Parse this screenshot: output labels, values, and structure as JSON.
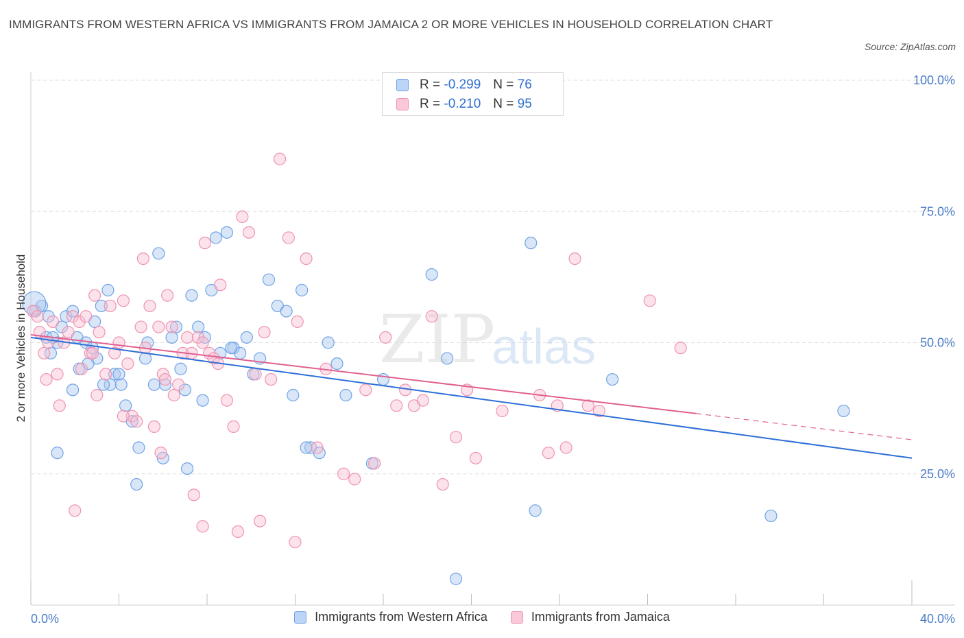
{
  "header": {
    "title": "IMMIGRANTS FROM WESTERN AFRICA VS IMMIGRANTS FROM JAMAICA 2 OR MORE VEHICLES IN HOUSEHOLD CORRELATION CHART",
    "source": "Source: ZipAtlas.com"
  },
  "legend": {
    "r_label": "R =",
    "n_label": "N =",
    "rows": [
      {
        "r": "-0.299",
        "n": "76",
        "color": "#6fa3e6"
      },
      {
        "r": "-0.210",
        "n": "95",
        "color": "#ef93b1"
      }
    ]
  },
  "watermark": {
    "zip": "ZIP",
    "atlas": "atlas"
  },
  "chart_data": {
    "type": "scatter",
    "ylabel": "2 or more Vehicles in Household",
    "xlabel": "",
    "xlim": [
      0,
      40
    ],
    "ylim": [
      0,
      100
    ],
    "x_tick_labels": [
      "0.0%",
      "40.0%"
    ],
    "y_tick_labels": [
      "25.0%",
      "50.0%",
      "75.0%",
      "100.0%"
    ],
    "y_ticks": [
      25,
      50,
      75,
      100
    ],
    "grid": true,
    "legend_position": "top-center",
    "series": [
      {
        "name": "Immigrants from Western Africa",
        "color": "#6fa3e6",
        "trend": {
          "x0": 0,
          "y0": 51.0,
          "x1": 40,
          "y1": 28.0
        },
        "points": [
          [
            0.2,
            56
          ],
          [
            0.5,
            57
          ],
          [
            0.8,
            55
          ],
          [
            0.7,
            51
          ],
          [
            0.9,
            48
          ],
          [
            1.2,
            50
          ],
          [
            1.6,
            55
          ],
          [
            1.4,
            53
          ],
          [
            1.9,
            56
          ],
          [
            2.1,
            51
          ],
          [
            2.5,
            50
          ],
          [
            2.8,
            49
          ],
          [
            3.2,
            57
          ],
          [
            3.5,
            60
          ],
          [
            3.0,
            47
          ],
          [
            2.6,
            46
          ],
          [
            2.2,
            45
          ],
          [
            1.9,
            41
          ],
          [
            1.2,
            29
          ],
          [
            3.8,
            44
          ],
          [
            4.1,
            42
          ],
          [
            4.3,
            38
          ],
          [
            4.6,
            35
          ],
          [
            4.9,
            30
          ],
          [
            5.2,
            47
          ],
          [
            5.3,
            50
          ],
          [
            5.8,
            67
          ],
          [
            6.1,
            42
          ],
          [
            6.4,
            51
          ],
          [
            6.6,
            53
          ],
          [
            6.8,
            45
          ],
          [
            7.0,
            41
          ],
          [
            7.3,
            59
          ],
          [
            7.6,
            53
          ],
          [
            7.9,
            51
          ],
          [
            8.2,
            60
          ],
          [
            8.4,
            70
          ],
          [
            8.6,
            48
          ],
          [
            8.9,
            71
          ],
          [
            9.2,
            49
          ],
          [
            9.5,
            48
          ],
          [
            9.8,
            51
          ],
          [
            10.1,
            44
          ],
          [
            10.4,
            47
          ],
          [
            10.8,
            62
          ],
          [
            11.2,
            57
          ],
          [
            11.6,
            56
          ],
          [
            11.9,
            40
          ],
          [
            12.3,
            60
          ],
          [
            12.7,
            30
          ],
          [
            13.1,
            29
          ],
          [
            13.5,
            50
          ],
          [
            13.9,
            46
          ],
          [
            14.3,
            40
          ],
          [
            6.0,
            28
          ],
          [
            7.1,
            26
          ],
          [
            4.8,
            23
          ],
          [
            15.5,
            27
          ],
          [
            16.0,
            43
          ],
          [
            18.2,
            63
          ],
          [
            18.9,
            47
          ],
          [
            19.3,
            5
          ],
          [
            22.7,
            69
          ],
          [
            22.9,
            18
          ],
          [
            26.4,
            43
          ],
          [
            36.9,
            37
          ],
          [
            33.6,
            17
          ],
          [
            3.6,
            42
          ],
          [
            2.9,
            54
          ],
          [
            7.8,
            39
          ],
          [
            9.1,
            49
          ],
          [
            5.6,
            42
          ],
          [
            4.0,
            44
          ],
          [
            3.3,
            42
          ],
          [
            1.0,
            51
          ],
          [
            12.5,
            30
          ]
        ]
      },
      {
        "name": "Immigrants from Jamaica",
        "color": "#ef93b1",
        "trend": {
          "x0": 0,
          "y0": 51.5,
          "x1": 30.2,
          "y1": 36.5,
          "dashed_to_x": 40,
          "dashed_to_y": 31.5
        },
        "points": [
          [
            0.1,
            56
          ],
          [
            0.3,
            55
          ],
          [
            0.4,
            52
          ],
          [
            0.6,
            48
          ],
          [
            0.8,
            50
          ],
          [
            1.0,
            54
          ],
          [
            1.2,
            44
          ],
          [
            1.5,
            50
          ],
          [
            1.7,
            52
          ],
          [
            1.9,
            55
          ],
          [
            2.2,
            54
          ],
          [
            2.3,
            45
          ],
          [
            2.5,
            55
          ],
          [
            2.7,
            48
          ],
          [
            2.9,
            59
          ],
          [
            3.1,
            52
          ],
          [
            3.4,
            44
          ],
          [
            3.6,
            57
          ],
          [
            3.8,
            48
          ],
          [
            4.0,
            50
          ],
          [
            4.2,
            58
          ],
          [
            4.4,
            46
          ],
          [
            4.6,
            36
          ],
          [
            4.8,
            35
          ],
          [
            5.0,
            53
          ],
          [
            5.2,
            49
          ],
          [
            5.4,
            57
          ],
          [
            5.6,
            34
          ],
          [
            5.8,
            53
          ],
          [
            6.0,
            44
          ],
          [
            6.2,
            59
          ],
          [
            6.4,
            53
          ],
          [
            6.7,
            42
          ],
          [
            6.9,
            48
          ],
          [
            7.1,
            51
          ],
          [
            7.3,
            48
          ],
          [
            7.6,
            51
          ],
          [
            7.8,
            50
          ],
          [
            7.9,
            69
          ],
          [
            8.1,
            48
          ],
          [
            8.3,
            47
          ],
          [
            8.5,
            46
          ],
          [
            8.6,
            61
          ],
          [
            8.9,
            39
          ],
          [
            9.2,
            34
          ],
          [
            9.6,
            74
          ],
          [
            9.9,
            71
          ],
          [
            10.2,
            44
          ],
          [
            10.6,
            52
          ],
          [
            10.9,
            43
          ],
          [
            11.3,
            85
          ],
          [
            11.7,
            70
          ],
          [
            12.1,
            54
          ],
          [
            12.5,
            66
          ],
          [
            13.0,
            30
          ],
          [
            13.4,
            45
          ],
          [
            14.2,
            25
          ],
          [
            14.7,
            24
          ],
          [
            15.2,
            41
          ],
          [
            15.6,
            27
          ],
          [
            16.1,
            51
          ],
          [
            16.6,
            38
          ],
          [
            17.0,
            41
          ],
          [
            17.4,
            38
          ],
          [
            17.8,
            39
          ],
          [
            18.2,
            55
          ],
          [
            18.7,
            23
          ],
          [
            19.3,
            32
          ],
          [
            19.8,
            41
          ],
          [
            20.2,
            28
          ],
          [
            21.4,
            37
          ],
          [
            23.1,
            40
          ],
          [
            23.5,
            29
          ],
          [
            23.9,
            38
          ],
          [
            24.3,
            30
          ],
          [
            24.7,
            66
          ],
          [
            25.3,
            38
          ],
          [
            25.8,
            37
          ],
          [
            28.1,
            58
          ],
          [
            29.5,
            49
          ],
          [
            2.0,
            18
          ],
          [
            7.4,
            21
          ],
          [
            7.8,
            15
          ],
          [
            9.4,
            14
          ],
          [
            10.4,
            16
          ],
          [
            12.0,
            12
          ],
          [
            5.1,
            66
          ],
          [
            4.2,
            36
          ],
          [
            6.5,
            40
          ],
          [
            6.1,
            43
          ],
          [
            1.3,
            38
          ],
          [
            3.0,
            40
          ],
          [
            0.7,
            43
          ],
          [
            5.9,
            29
          ],
          [
            2.8,
            48
          ]
        ]
      }
    ]
  }
}
